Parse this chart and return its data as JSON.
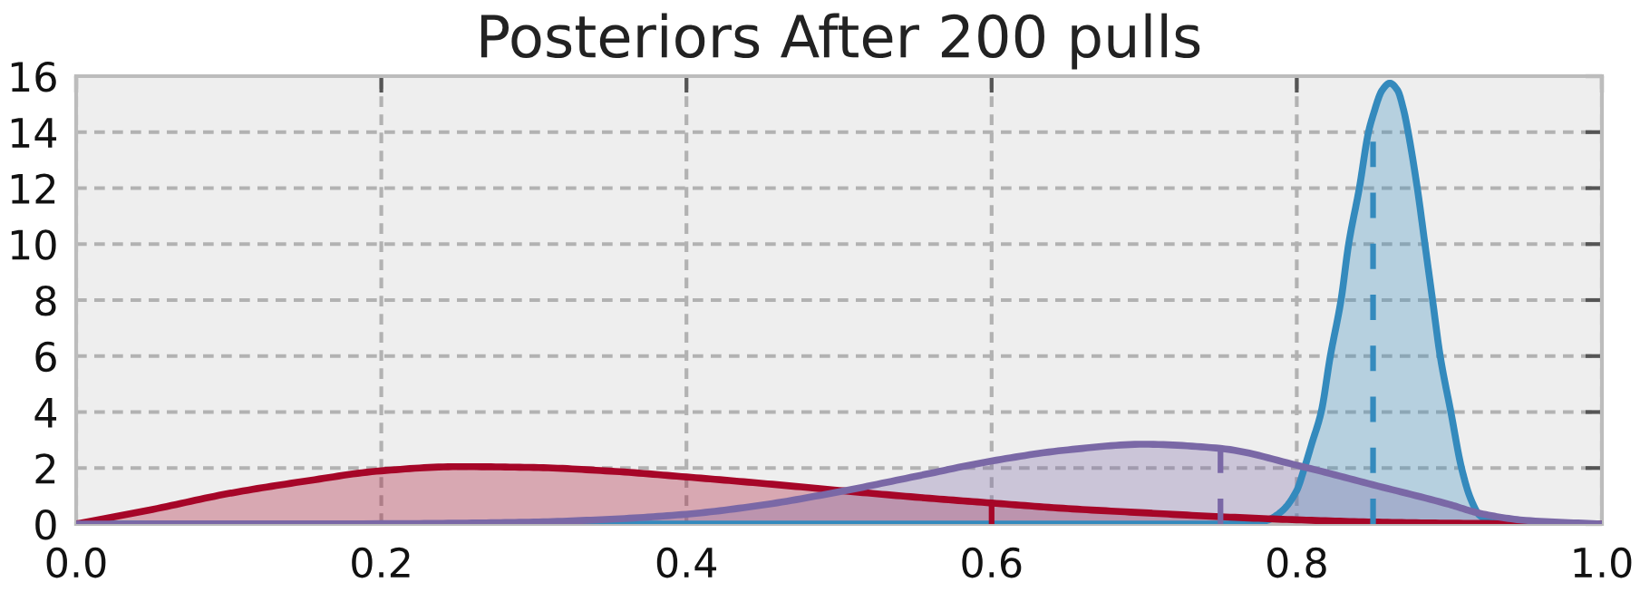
{
  "chart_data": {
    "type": "area",
    "title": "Posteriors After 200 pulls",
    "xlim": [
      0,
      1
    ],
    "ylim": [
      0,
      16
    ],
    "xticks": [
      {
        "value": 0,
        "label": "0.0"
      },
      0.2,
      0.4,
      0.6,
      0.8,
      {
        "value": 1,
        "label": "1.0"
      }
    ],
    "yticks": [
      0,
      2,
      4,
      6,
      8,
      10,
      12,
      14,
      16
    ],
    "grid": true,
    "series": [
      {
        "color": "#348abd",
        "x": [
          0,
          0.75,
          0.77,
          0.78,
          0.79,
          0.8,
          0.805,
          0.81,
          0.816,
          0.822,
          0.829,
          0.834,
          0.841,
          0.847,
          0.85,
          0.856,
          0.861,
          0.866,
          0.87,
          0.873,
          0.879,
          0.884,
          0.889,
          0.894,
          0.901,
          0.908,
          0.914,
          0.92,
          0.93,
          0.95,
          1.0
        ],
        "values": [
          0,
          0,
          0.02,
          0.12,
          0.45,
          1.2,
          2,
          2.9,
          4,
          6,
          8,
          10,
          12,
          14,
          14.6,
          15.5,
          15.75,
          15.5,
          14.8,
          14,
          12,
          10,
          8,
          6,
          4,
          2,
          0.9,
          0.3,
          0.05,
          0,
          0
        ]
      },
      {
        "color": "#a60628",
        "x": [
          0,
          0.05,
          0.1,
          0.15,
          0.2,
          0.25,
          0.3,
          0.35,
          0.4,
          0.45,
          0.5,
          0.55,
          0.6,
          0.65,
          0.7,
          0.75,
          0.8,
          0.85,
          0.9,
          0.95,
          1.0
        ],
        "values": [
          0,
          0.52,
          1.09,
          1.53,
          1.9,
          2.05,
          2.02,
          1.89,
          1.68,
          1.45,
          1.2,
          0.96,
          0.75,
          0.55,
          0.4,
          0.26,
          0.15,
          0.07,
          0.03,
          0.01,
          0
        ]
      },
      {
        "color": "#7a68a6",
        "x": [
          0,
          0.2,
          0.25,
          0.3,
          0.35,
          0.4,
          0.45,
          0.5,
          0.55,
          0.6,
          0.65,
          0.7,
          0.75,
          0.8,
          0.85,
          0.9,
          0.92,
          0.95,
          1.0
        ],
        "values": [
          0,
          0.01,
          0.03,
          0.07,
          0.17,
          0.35,
          0.68,
          1.15,
          1.7,
          2.25,
          2.65,
          2.85,
          2.7,
          2.1,
          1.4,
          0.7,
          0.38,
          0.13,
          0
        ]
      },
      {
        "type": "line",
        "line_style": "dashed",
        "color": "#348abd",
        "x": [
          0.85,
          0.85
        ],
        "values": [
          0,
          14.6
        ]
      },
      {
        "type": "line",
        "line_style": "dashed",
        "color": "#a60628",
        "x": [
          0.6,
          0.6
        ],
        "values": [
          0,
          0.75
        ]
      },
      {
        "type": "line",
        "line_style": "dashed",
        "color": "#7a68a6",
        "x": [
          0.75,
          0.75
        ],
        "values": [
          0,
          2.7
        ]
      }
    ]
  }
}
